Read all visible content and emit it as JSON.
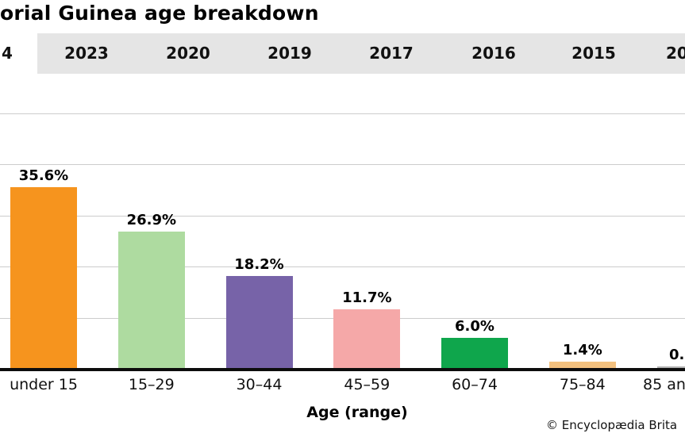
{
  "page": {
    "title": "orial Guinea age breakdown",
    "copyright": "© Encyclopædia Brita"
  },
  "tabs": [
    {
      "label": "4",
      "selected": true
    },
    {
      "label": "2023",
      "selected": false
    },
    {
      "label": "2020",
      "selected": false
    },
    {
      "label": "2019",
      "selected": false
    },
    {
      "label": "2017",
      "selected": false
    },
    {
      "label": "2016",
      "selected": false
    },
    {
      "label": "2015",
      "selected": false
    },
    {
      "label": "20",
      "selected": false
    }
  ],
  "colors": {
    "tabbar_bg": "#e5e5e5",
    "selected_tab_bg": "#ffffff",
    "gridline": "#cccccc",
    "axis_line": "#0d0d0d",
    "text": "#000000"
  },
  "chart_data": {
    "type": "bar",
    "title": "orial Guinea age breakdown",
    "xlabel": "Age (range)",
    "ylabel": "",
    "categories": [
      "under 15",
      "15–29",
      "30–44",
      "45–59",
      "60–74",
      "75–84",
      "85 an"
    ],
    "values": [
      35.6,
      26.9,
      18.2,
      11.7,
      6.0,
      1.4,
      0.4
    ],
    "value_labels": [
      "35.6%",
      "26.9%",
      "18.2%",
      "11.7%",
      "6.0%",
      "1.4%",
      "0."
    ],
    "bar_colors": [
      "#f6941e",
      "#aedba0",
      "#7763a8",
      "#f5a8a8",
      "#0fa64c",
      "#f3c17f",
      "#b3b3b3"
    ],
    "ylim": [
      0,
      55
    ],
    "grid": {
      "on": true,
      "step": 10,
      "max": 50
    },
    "legend": "none"
  }
}
